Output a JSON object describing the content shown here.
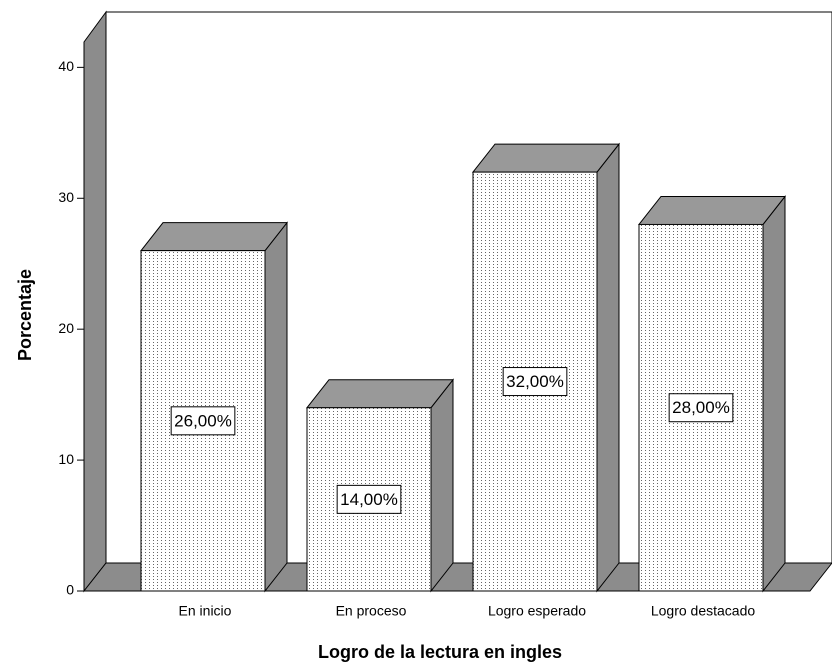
{
  "chart_data": {
    "type": "bar3d",
    "categories": [
      "En inicio",
      "En proceso",
      "Logro esperado",
      "Logro destacado"
    ],
    "values": [
      26,
      14,
      32,
      28
    ],
    "value_labels": [
      "26,00%",
      "14,00%",
      "32,00%",
      "28,00%"
    ],
    "ylim": [
      0,
      44
    ],
    "yticks": [
      0,
      10,
      20,
      30,
      40
    ],
    "ylabel": "Porcentaje",
    "xlabel": "Logro de la lectura en ingles",
    "color": "#ffffff",
    "top_color": "#999999",
    "side_color": "#8c8c8c"
  }
}
